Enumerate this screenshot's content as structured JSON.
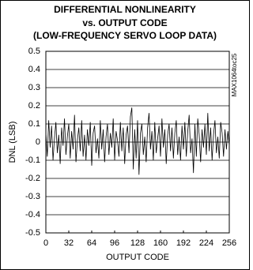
{
  "chart_data": {
    "type": "line",
    "title": [
      "DIFFERENTIAL NONLINEARITY",
      "vs. OUTPUT CODE",
      "(LOW-FREQUENCY SERVO LOOP DATA)"
    ],
    "side_label": "MAX1064toc25",
    "xlabel": "OUTPUT CODE",
    "ylabel": "DNL (LSB)",
    "x": [
      0,
      2,
      4,
      6,
      8,
      10,
      12,
      14,
      16,
      18,
      20,
      22,
      24,
      26,
      28,
      30,
      32,
      34,
      36,
      38,
      40,
      42,
      44,
      46,
      48,
      50,
      52,
      54,
      56,
      58,
      60,
      62,
      64,
      66,
      68,
      70,
      72,
      74,
      76,
      78,
      80,
      82,
      84,
      86,
      88,
      90,
      92,
      94,
      96,
      98,
      100,
      102,
      104,
      106,
      108,
      110,
      112,
      114,
      116,
      118,
      120,
      122,
      124,
      126,
      128,
      130,
      132,
      134,
      136,
      138,
      140,
      142,
      144,
      146,
      148,
      150,
      152,
      154,
      156,
      158,
      160,
      162,
      164,
      166,
      168,
      170,
      172,
      174,
      176,
      178,
      180,
      182,
      184,
      186,
      188,
      190,
      192,
      194,
      196,
      198,
      200,
      202,
      204,
      206,
      208,
      210,
      212,
      214,
      216,
      218,
      220,
      222,
      224,
      226,
      228,
      230,
      232,
      234,
      236,
      238,
      240,
      242,
      244,
      246,
      248,
      250,
      252,
      254,
      256
    ],
    "series": [
      {
        "name": "DNL",
        "color": "#000000",
        "values": [
          0.05,
          -0.08,
          0.12,
          -0.03,
          0.09,
          -0.1,
          0.02,
          0.11,
          -0.06,
          0.04,
          -0.12,
          0.08,
          -0.02,
          0.13,
          -0.07,
          0.03,
          0.1,
          -0.09,
          0.06,
          -0.04,
          0.15,
          -0.11,
          0.01,
          0.08,
          -0.05,
          0.12,
          -0.08,
          0.04,
          -0.1,
          0.07,
          -0.02,
          0.11,
          -0.13,
          0.05,
          0.09,
          -0.06,
          0.02,
          -0.09,
          0.12,
          -0.04,
          0.07,
          -0.11,
          0.03,
          0.1,
          -0.07,
          0.05,
          -0.03,
          0.13,
          -0.1,
          0.06,
          0.01,
          -0.08,
          0.11,
          -0.05,
          0.08,
          -0.12,
          0.04,
          0.09,
          -0.06,
          0.14,
          0.19,
          -0.15,
          0.07,
          -0.09,
          0.12,
          -0.18,
          0.05,
          0.1,
          -0.07,
          0.03,
          -0.11,
          0.08,
          0.16,
          -0.04,
          0.06,
          -0.1,
          0.11,
          -0.06,
          0.02,
          0.09,
          -0.08,
          0.13,
          -0.03,
          0.07,
          -0.12,
          0.04,
          0.1,
          -0.05,
          0.08,
          -0.09,
          0.05,
          0.12,
          -0.07,
          0.03,
          -0.1,
          0.09,
          -0.04,
          0.11,
          -0.08,
          0.06,
          0.15,
          -0.06,
          0.02,
          -0.17,
          0.1,
          -0.08,
          0.13,
          0.04,
          -0.11,
          0.07,
          -0.03,
          0.1,
          -0.07,
          0.16,
          -0.05,
          0.08,
          -0.1,
          0.04,
          0.12,
          -0.06,
          0.03,
          -0.09,
          0.11,
          0.05,
          -0.08,
          0.07,
          -0.04,
          0.06,
          -0.02
        ]
      }
    ],
    "xlim": [
      0,
      256
    ],
    "xticks": [
      0,
      32,
      64,
      96,
      128,
      160,
      192,
      224,
      256
    ],
    "ylim": [
      -0.5,
      0.5
    ],
    "yticks": [
      0.5,
      0.4,
      0.3,
      0.2,
      0.1,
      0,
      -0.1,
      -0.2,
      -0.3,
      -0.4,
      -0.5
    ],
    "grid": true
  }
}
